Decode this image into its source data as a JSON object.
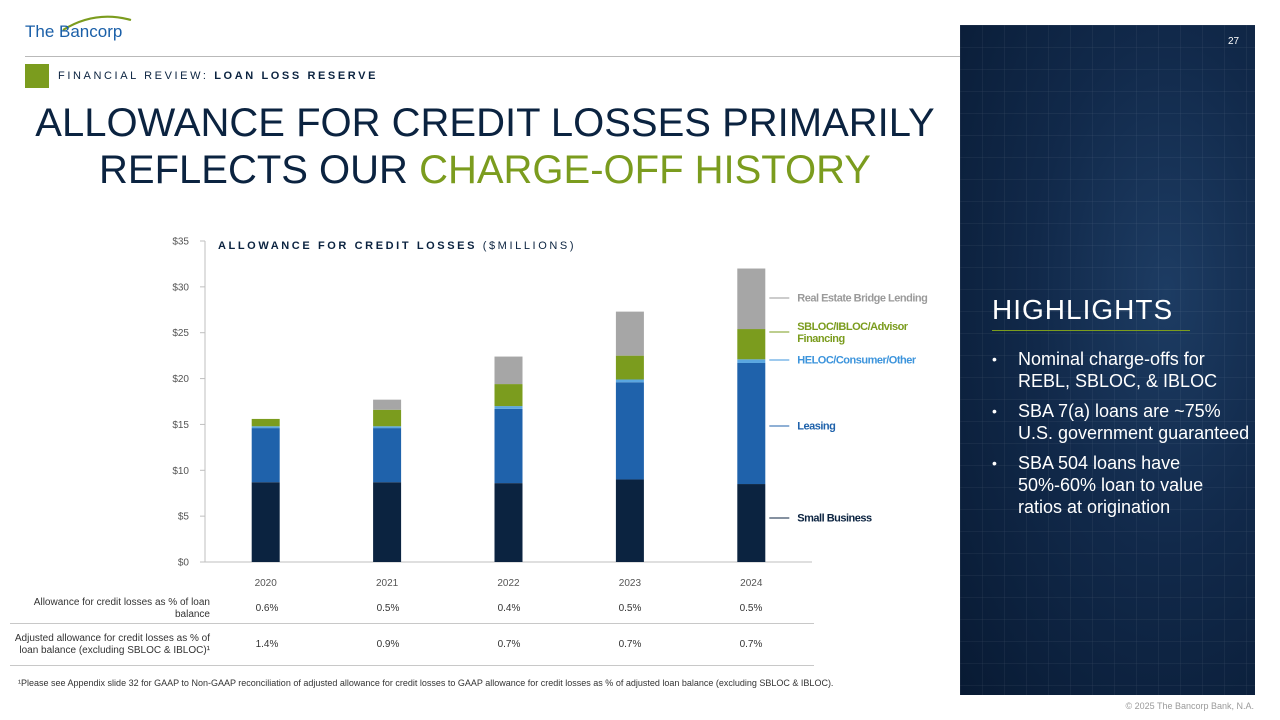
{
  "logo": {
    "text": "The Bancorp",
    "swoosh_color": "#7b9c1e"
  },
  "page_number": "27",
  "section": {
    "prefix": "FINANCIAL REVIEW: ",
    "bold": "LOAN LOSS RESERVE"
  },
  "title": {
    "line1": "ALLOWANCE FOR CREDIT LOSSES PRIMARILY",
    "line2_plain": "REFLECTS OUR ",
    "line2_highlight": "CHARGE-OFF HISTORY"
  },
  "highlights": {
    "title": "HIGHLIGHTS",
    "items": [
      "Nominal charge-offs for REBL, SBLOC, & IBLOC",
      "SBA 7(a) loans are ~75% U.S. government guaranteed",
      "SBA 504 loans have 50%-60% loan to value ratios at origination"
    ]
  },
  "chart_data": {
    "type": "bar",
    "stacked": true,
    "title": "ALLOWANCE FOR CREDIT LOSSES",
    "title_units": "($MILLIONS)",
    "categories": [
      "2020",
      "2021",
      "2022",
      "2023",
      "2024"
    ],
    "ylim": [
      0,
      35
    ],
    "yticks": [
      0,
      5,
      10,
      15,
      20,
      25,
      30,
      35
    ],
    "ytick_labels": [
      "$0",
      "$5",
      "$10",
      "$15",
      "$20",
      "$25",
      "$30",
      "$35"
    ],
    "grid": false,
    "legend": "right",
    "series": [
      {
        "name": "Small Business",
        "color": "#0b2340",
        "label_color": "#0b2340",
        "values": [
          8.7,
          8.7,
          8.6,
          9.0,
          8.5
        ]
      },
      {
        "name": "Leasing",
        "color": "#1f62ab",
        "label_color": "#1f62ab",
        "values": [
          5.9,
          5.9,
          8.1,
          10.6,
          13.2
        ]
      },
      {
        "name": "HELOC/Consumer/Other",
        "color": "#5aa6e0",
        "label_color": "#3c94dc",
        "values": [
          0.2,
          0.2,
          0.3,
          0.3,
          0.4
        ]
      },
      {
        "name": "SBLOC/IBLOC/Advisor Financing",
        "color": "#7b9c1e",
        "label_color": "#7b9c1e",
        "values": [
          0.8,
          1.8,
          2.4,
          2.6,
          3.3
        ]
      },
      {
        "name": "Real Estate Bridge Lending",
        "color": "#a6a6a6",
        "label_color": "#9a9a9a",
        "values": [
          0.0,
          1.1,
          3.0,
          4.8,
          6.6
        ]
      }
    ]
  },
  "table": {
    "rows": [
      {
        "label": "Allowance for credit losses as % of loan balance",
        "values": [
          "0.6%",
          "0.5%",
          "0.4%",
          "0.5%",
          "0.5%"
        ]
      },
      {
        "label": "Adjusted allowance for credit losses as % of loan balance (excluding SBLOC & IBLOC)¹",
        "values": [
          "1.4%",
          "0.9%",
          "0.7%",
          "0.7%",
          "0.7%"
        ]
      }
    ]
  },
  "footnote": "¹Please see Appendix slide 32 for GAAP to Non-GAAP reconciliation of adjusted allowance for credit losses to GAAP allowance for credit losses as % of adjusted loan balance (excluding SBLOC & IBLOC).",
  "copyright": "© 2025 The Bancorp Bank, N.A."
}
